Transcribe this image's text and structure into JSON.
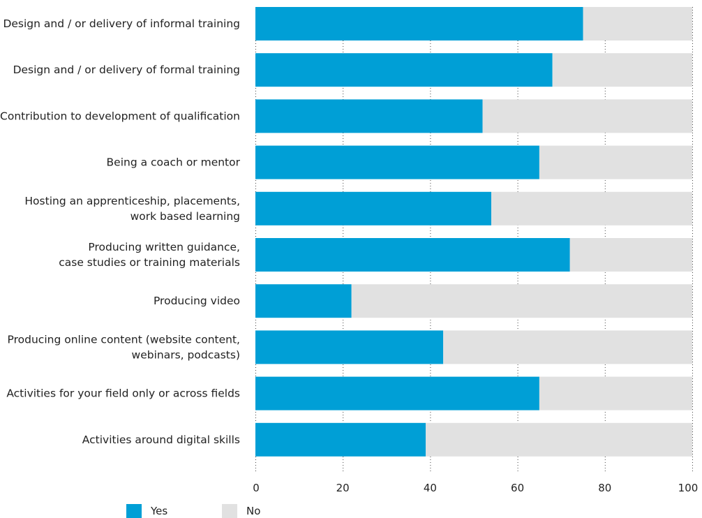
{
  "chart_data": {
    "type": "bar",
    "orientation": "horizontal",
    "stacked": true,
    "categories": [
      [
        "Design and / or delivery of informal training"
      ],
      [
        "Design and / or delivery of formal training"
      ],
      [
        "Contribution to development of qualification"
      ],
      [
        "Being a coach or mentor"
      ],
      [
        "Hosting an apprenticeship, placements,",
        "work based learning"
      ],
      [
        "Producing written guidance,",
        "case studies or training materials"
      ],
      [
        "Producing video"
      ],
      [
        "Producing online content (website content,",
        "webinars, podcasts)"
      ],
      [
        "Activities for your field only or across fields"
      ],
      [
        "Activities around digital skills"
      ]
    ],
    "series": [
      {
        "name": "Yes",
        "color": "#009fd6",
        "values": [
          75,
          68,
          52,
          65,
          54,
          72,
          22,
          43,
          65,
          39
        ]
      },
      {
        "name": "No",
        "color": "#e1e1e1",
        "values": [
          25,
          32,
          48,
          35,
          46,
          28,
          78,
          57,
          35,
          61
        ]
      }
    ],
    "xlim": [
      0,
      100
    ],
    "xticks": [
      0,
      20,
      40,
      60,
      80,
      100
    ],
    "grid": true,
    "legend_position": "bottom-left",
    "title": "",
    "xlabel": "",
    "ylabel": ""
  }
}
